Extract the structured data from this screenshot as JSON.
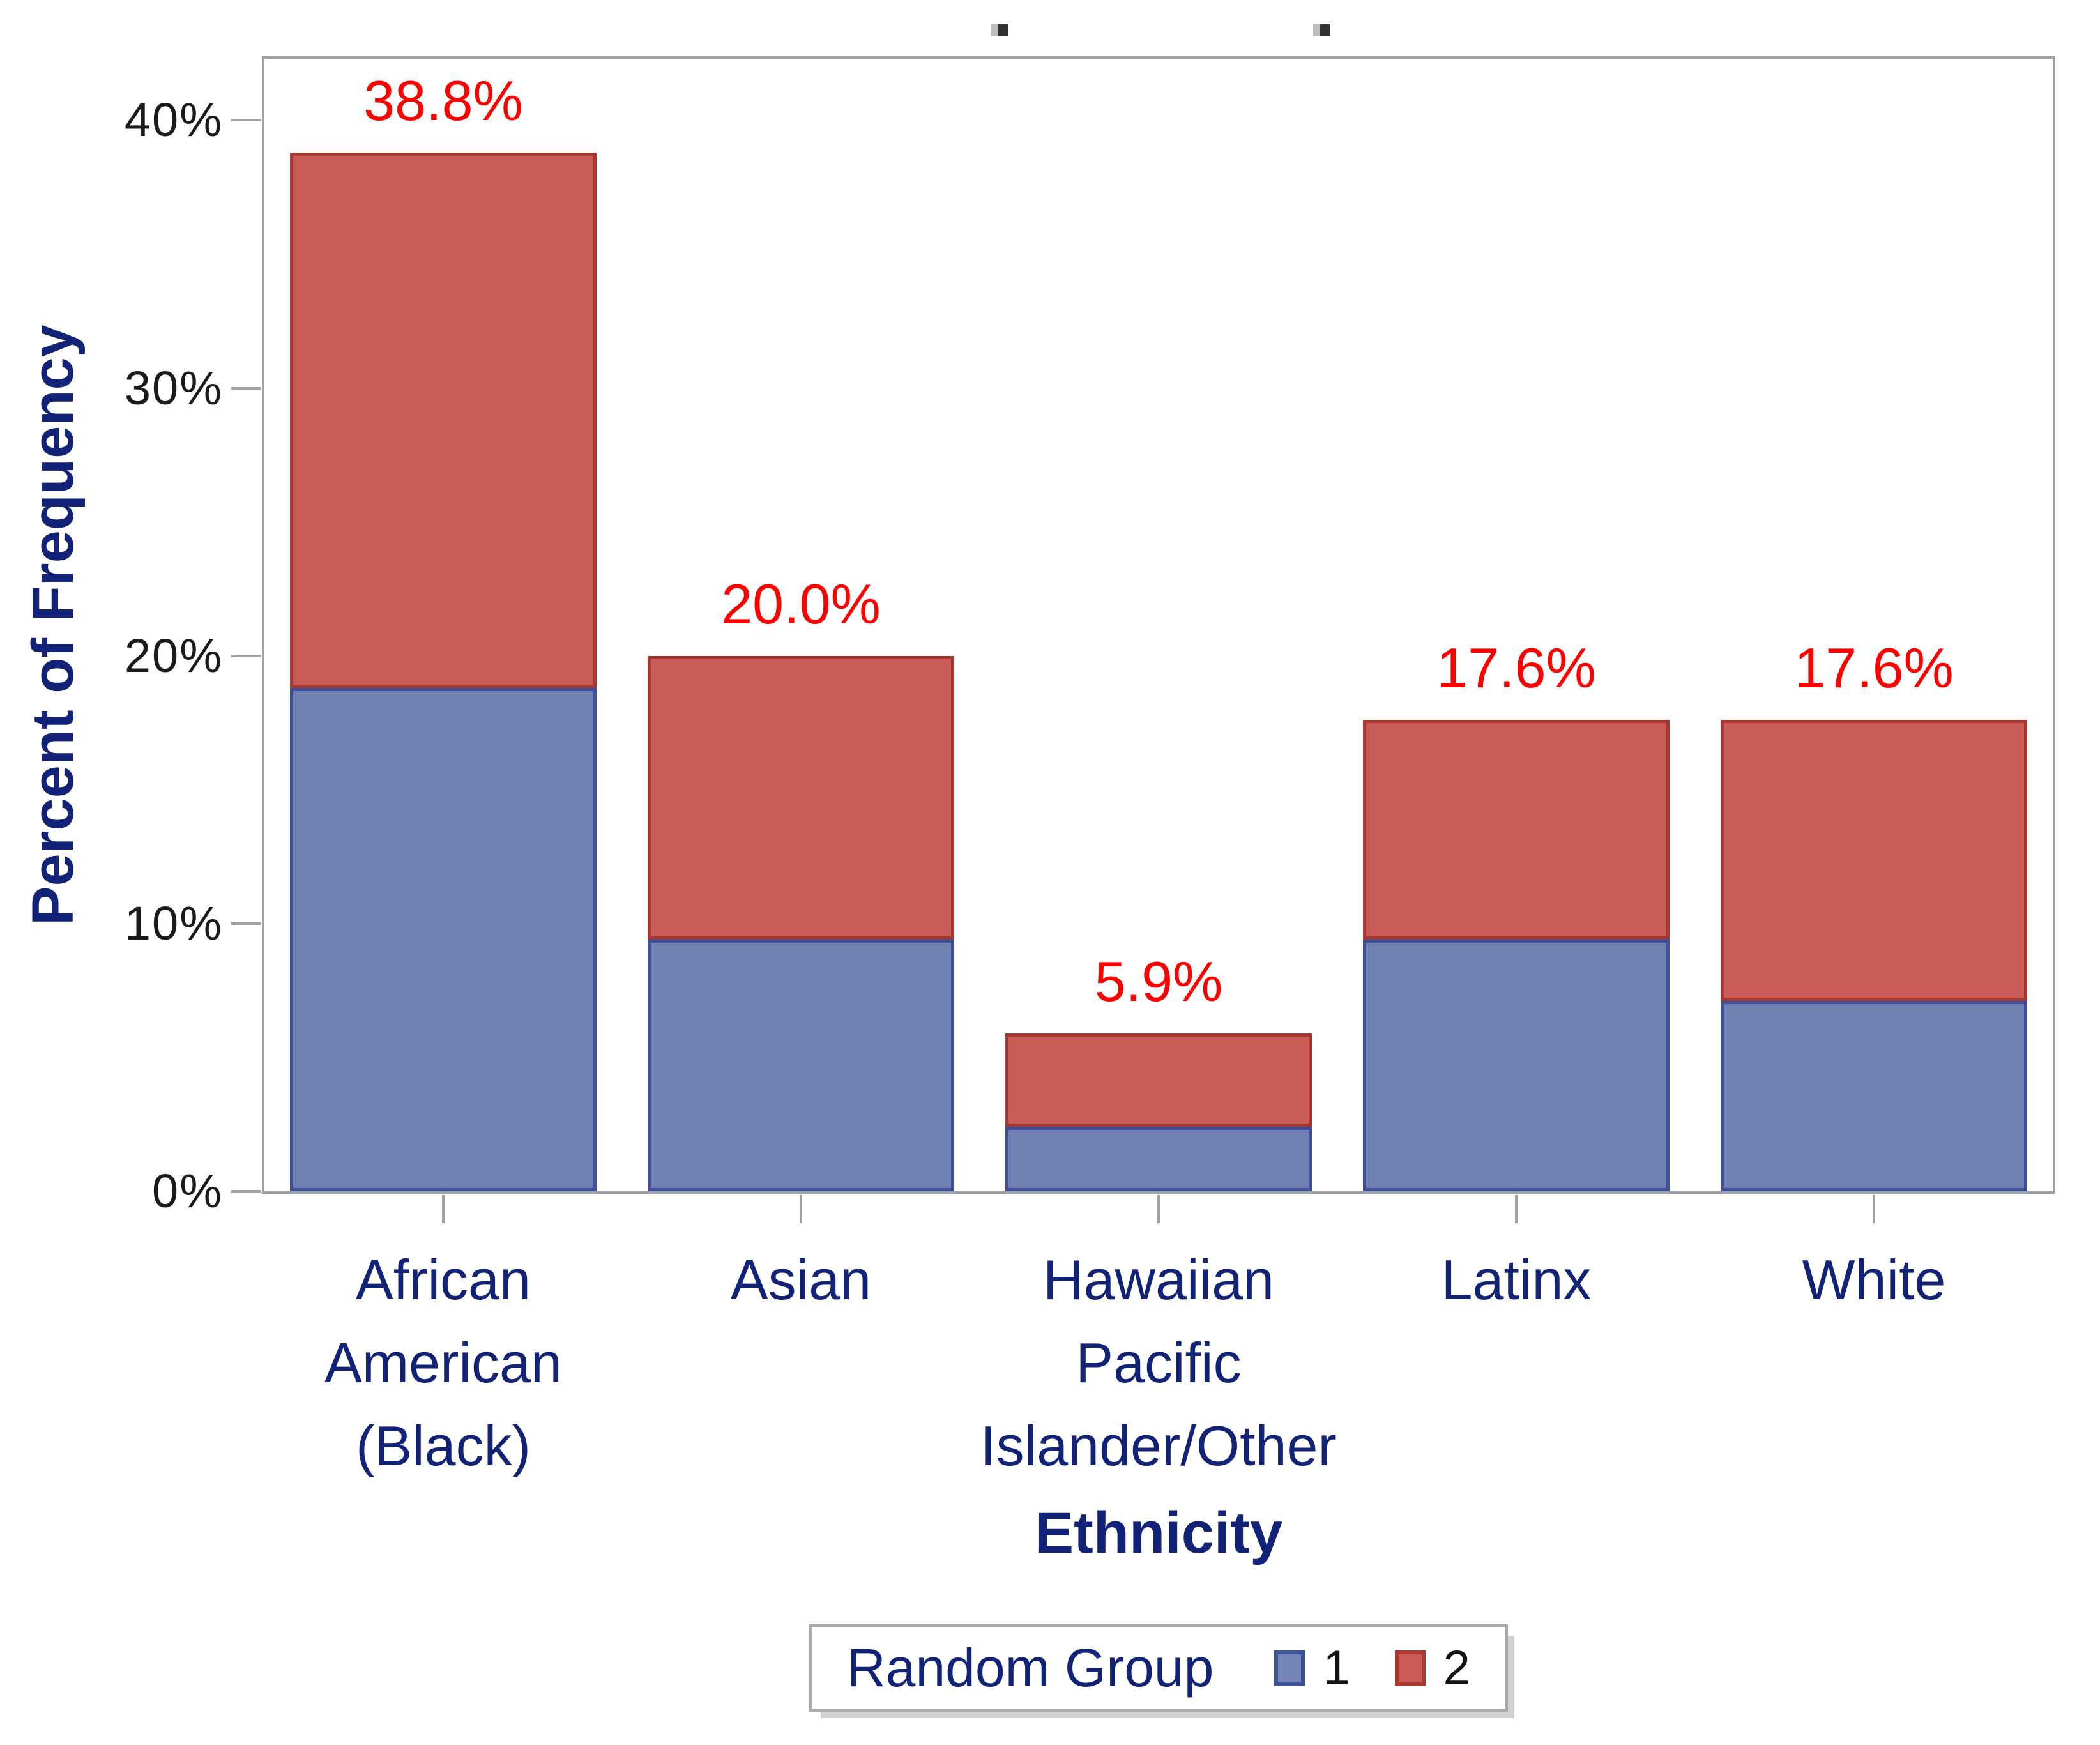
{
  "figure": {
    "background": "#FFFFFF",
    "title_marks": [
      ".",
      "."
    ]
  },
  "chart_data": {
    "type": "bar",
    "stacked": true,
    "title": "",
    "xlabel": "Ethnicity",
    "ylabel": "Percent of Frequency",
    "categories": [
      "African American (Black)",
      "Asian",
      "Hawaiian Pacific Islander/Other",
      "Latinx",
      "White"
    ],
    "category_label_lines": [
      [
        "African",
        "American",
        "(Black)"
      ],
      [
        "Asian"
      ],
      [
        "Hawaiian",
        "Pacific",
        "Islander/Other"
      ],
      [
        "Latinx"
      ],
      [
        "White"
      ]
    ],
    "series": [
      {
        "name": "1",
        "values": [
          18.8,
          9.4,
          2.4,
          9.4,
          7.1
        ],
        "fill": "#7080B3",
        "stroke": "#3F4F97"
      },
      {
        "name": "2",
        "values": [
          20.0,
          10.6,
          3.5,
          8.2,
          10.5
        ],
        "fill": "#CB5B57",
        "stroke": "#A53931"
      }
    ],
    "totals": [
      38.8,
      20.0,
      5.9,
      17.6,
      17.6
    ],
    "total_labels": [
      "38.8%",
      "20.0%",
      "5.9%",
      "17.6%",
      "17.6%"
    ],
    "yticks": [
      {
        "value": 0,
        "label": "0%"
      },
      {
        "value": 10,
        "label": "10%"
      },
      {
        "value": 20,
        "label": "20%"
      },
      {
        "value": 30,
        "label": "30%"
      },
      {
        "value": 40,
        "label": "40%"
      }
    ],
    "ylim": [
      0,
      40
    ],
    "grid": false,
    "legend": {
      "title": "Random Group",
      "position": "bottom",
      "entries": [
        {
          "label": "1",
          "fill": "#7585B8",
          "stroke": "#3F5496"
        },
        {
          "label": "2",
          "fill": "#CC5A56",
          "stroke": "#AA3930"
        }
      ]
    },
    "colors": {
      "axis_text": "#112277",
      "tick_label": "#1A1A1A",
      "data_label": "#FF0000",
      "frame": "#9EA1A5"
    }
  }
}
